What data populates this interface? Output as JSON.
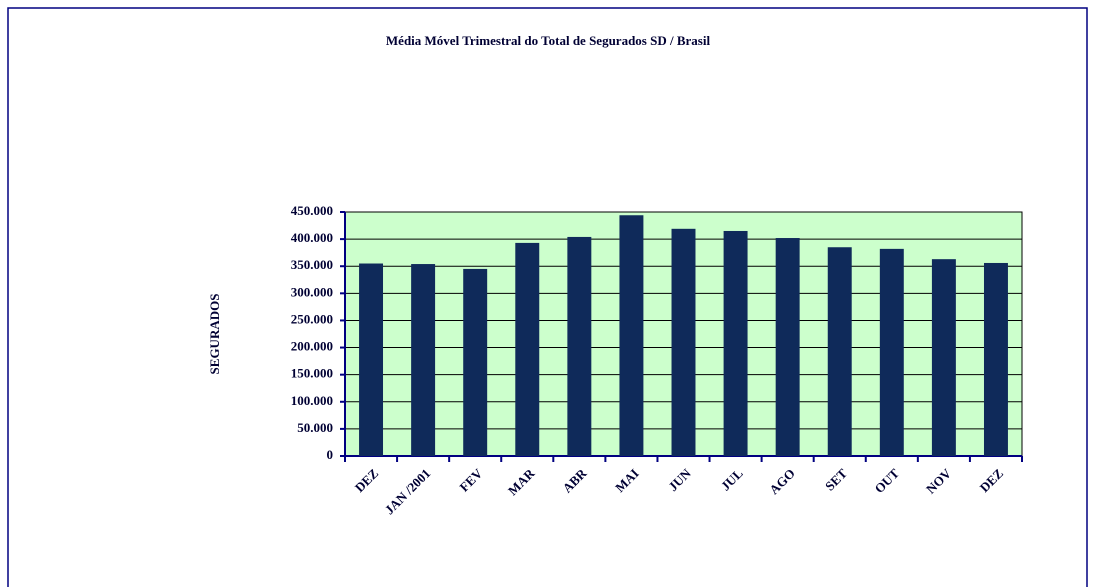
{
  "chart_data": {
    "type": "bar",
    "title": "Média Móvel Trimestral do Total de Segurados SD / Brasil",
    "y_label": "SEGURADOS",
    "categories": [
      "DEZ",
      "JAN /2001",
      "FEV",
      "MAR",
      "ABR",
      "MAI",
      "JUN",
      "JUL",
      "AGO",
      "SET",
      "OUT",
      "NOV",
      "DEZ"
    ],
    "values": [
      355000,
      354000,
      345000,
      393000,
      404000,
      444000,
      419000,
      415000,
      402000,
      385000,
      382000,
      363000,
      356000
    ],
    "color": "#0f2a5a",
    "ylim": [
      0,
      450000
    ],
    "yticks": [
      0,
      {
        "value": 50000,
        "label": "50.000"
      },
      {
        "value": 100000,
        "label": "100.000"
      },
      {
        "value": 150000,
        "label": "150.000"
      },
      {
        "value": 200000,
        "label": "200.000"
      },
      {
        "value": 250000,
        "label": "250.000"
      },
      {
        "value": 300000,
        "label": "300.000"
      },
      {
        "value": 350000,
        "label": "350.000"
      },
      {
        "value": 400000,
        "label": "400.000"
      },
      {
        "value": 450000,
        "label": "450.000"
      }
    ],
    "grid": true
  }
}
